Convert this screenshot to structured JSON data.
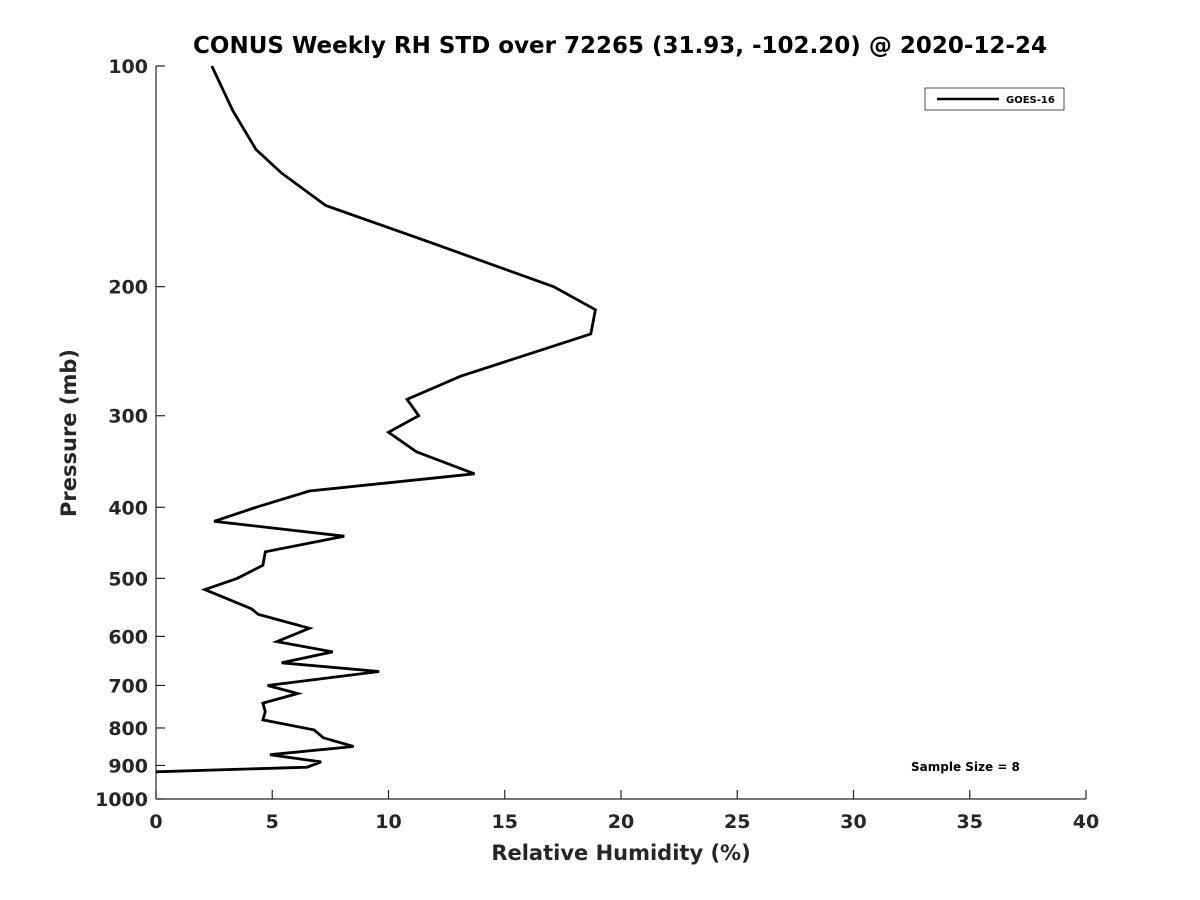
{
  "chart_data": {
    "type": "line",
    "title": "CONUS Weekly RH STD over 72265 (31.93, -102.20) @ 2020-12-24",
    "xlabel": "Relative Humidity (%)",
    "ylabel": "Pressure (mb)",
    "xlim": [
      0,
      40
    ],
    "ylim": [
      100,
      1000
    ],
    "y_scale": "log",
    "y_direction": "reversed",
    "x_ticks": [
      "0",
      "5",
      "10",
      "15",
      "20",
      "25",
      "30",
      "35",
      "40"
    ],
    "x_tick_values": [
      0,
      5,
      10,
      15,
      20,
      25,
      30,
      35,
      40
    ],
    "y_ticks": [
      "100",
      "200",
      "300",
      "400",
      "500",
      "600",
      "700",
      "800",
      "900",
      "1000"
    ],
    "y_tick_values": [
      100,
      200,
      300,
      400,
      500,
      600,
      700,
      800,
      900,
      1000
    ],
    "grid": false,
    "legend_position": "top-right",
    "series": [
      {
        "name": "GOES-16",
        "color": "#000000",
        "x": [
          2.4,
          3.3,
          4.3,
          5.4,
          7.3,
          12.0,
          17.1,
          18.9,
          18.7,
          13.1,
          10.8,
          11.3,
          10.0,
          11.2,
          13.7,
          6.6,
          4.3,
          2.5,
          8.1,
          4.7,
          4.6,
          3.5,
          2.1,
          4.1,
          4.4,
          6.6,
          5.2,
          7.6,
          5.4,
          9.6,
          4.8,
          6.1,
          4.6,
          4.7,
          4.6,
          6.8,
          7.2,
          8.5,
          4.9,
          7.1,
          6.5,
          0.0
        ],
        "y": [
          100,
          115,
          130,
          140,
          155,
          175,
          200,
          215,
          232,
          265,
          285,
          300,
          316,
          336,
          360,
          380,
          400,
          418,
          438,
          460,
          480,
          500,
          518,
          550,
          560,
          585,
          610,
          630,
          652,
          670,
          700,
          718,
          740,
          760,
          780,
          805,
          825,
          848,
          870,
          890,
          905,
          918
        ]
      }
    ],
    "annotation": "Sample Size = 8"
  }
}
